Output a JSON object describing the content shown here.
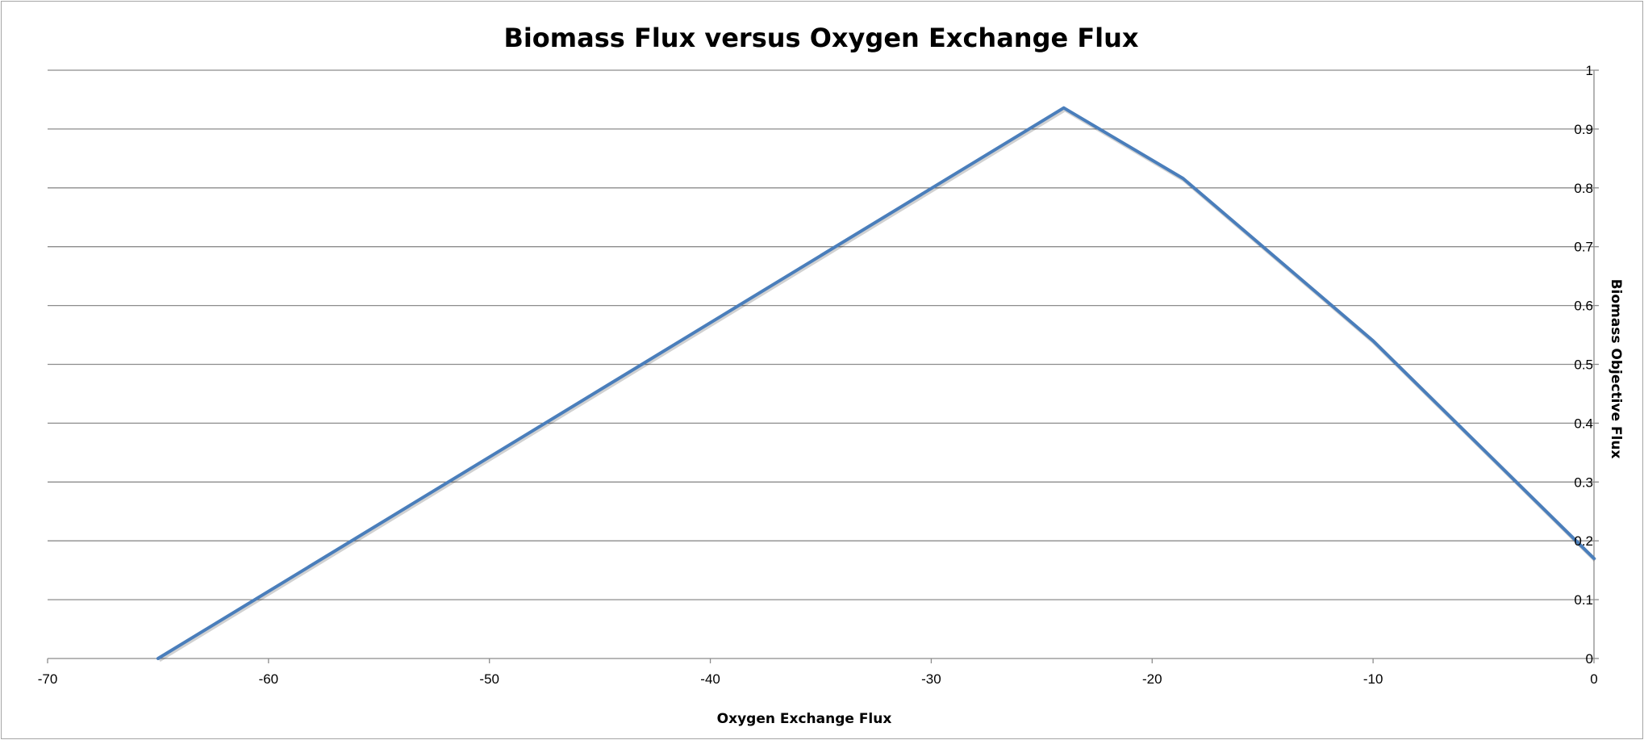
{
  "chart_data": {
    "type": "line",
    "title": "Biomass Flux versus Oxygen Exchange Flux",
    "xlabel": "Oxygen Exchange Flux",
    "ylabel": "Biomass Objective Flux",
    "xlim": [
      -70,
      0
    ],
    "ylim": [
      0,
      1
    ],
    "x_ticks": [
      -70,
      -60,
      -50,
      -40,
      -30,
      -20,
      -10,
      0
    ],
    "y_ticks": [
      0,
      0.1,
      0.2,
      0.3,
      0.4,
      0.5,
      0.6,
      0.7,
      0.8,
      0.9,
      1
    ],
    "y_axis_side": "right",
    "grid": "horizontal",
    "legend": "none",
    "series": [
      {
        "color": "#4a7ebb",
        "x": [
          -65,
          -24,
          -18.6,
          -10,
          0
        ],
        "y": [
          0,
          0.936,
          0.816,
          0.54,
          0.17
        ]
      }
    ]
  }
}
